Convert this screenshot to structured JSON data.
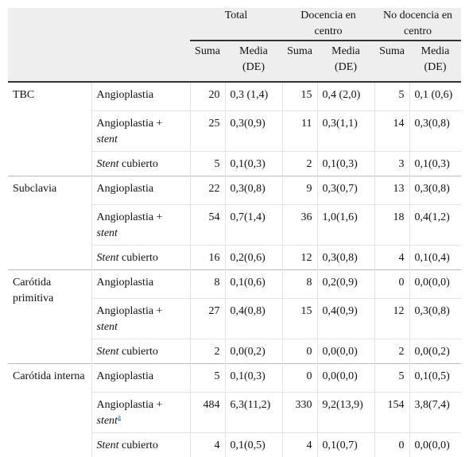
{
  "header": {
    "groups": [
      {
        "label": "Total"
      },
      {
        "label": "Docencia en centro"
      },
      {
        "label": "No docencia en centro"
      }
    ],
    "sum_label": "Suma",
    "mean_label": "Media (DE)"
  },
  "rows": [
    {
      "group": "TBC",
      "procs": [
        {
          "name": "Angioplastia",
          "stent": "",
          "t_sum": "20",
          "t_mean": "0,3 (1,4)",
          "d_sum": "15",
          "d_mean": "0,4 (2,0)",
          "n_sum": "5",
          "n_mean": "0,1 (0,6)"
        },
        {
          "name": "Angioplastia +",
          "stent": "stent",
          "t_sum": "25",
          "t_mean": "0,3(0,9)",
          "d_sum": "11",
          "d_mean": "0,3(1,1)",
          "n_sum": "14",
          "n_mean": "0,3(0,8)"
        },
        {
          "name": "cubierto",
          "stent_lead": "Stent",
          "t_sum": "5",
          "t_mean": "0,1(0,3)",
          "d_sum": "2",
          "d_mean": "0,1(0,3)",
          "n_sum": "3",
          "n_mean": "0,1(0,3)"
        }
      ]
    },
    {
      "group": "Subclavia",
      "procs": [
        {
          "name": "Angioplastia",
          "t_sum": "22",
          "t_mean": "0,3(0,8)",
          "d_sum": "9",
          "d_mean": "0,3(0,7)",
          "n_sum": "13",
          "n_mean": "0,3(0,8)"
        },
        {
          "name": "Angioplastia +",
          "stent": "stent",
          "t_sum": "54",
          "t_mean": "0,7(1,4)",
          "d_sum": "36",
          "d_mean": "1,0(1,6)",
          "n_sum": "18",
          "n_mean": "0,4(1,2)"
        },
        {
          "name": "cubierto",
          "stent_lead": "Stent",
          "t_sum": "16",
          "t_mean": "0,2(0,6)",
          "d_sum": "12",
          "d_mean": "0,3(0,8)",
          "n_sum": "4",
          "n_mean": "0,1(0,4)"
        }
      ]
    },
    {
      "group": "Carótida primitiva",
      "procs": [
        {
          "name": "Angioplastia",
          "t_sum": "8",
          "t_mean": "0,1(0,6)",
          "d_sum": "8",
          "d_mean": "0,2(0,9)",
          "n_sum": "0",
          "n_mean": "0,0(0,0)"
        },
        {
          "name": "Angioplastia +",
          "stent": "stent",
          "t_sum": "27",
          "t_mean": "0,4(0,8)",
          "d_sum": "15",
          "d_mean": "0,4(0,9)",
          "n_sum": "12",
          "n_mean": "0,3(0,8)"
        },
        {
          "name": "cubierto",
          "stent_lead": "Stent",
          "t_sum": "2",
          "t_mean": "0,0(0,2)",
          "d_sum": "0",
          "d_mean": "0,0(0,0)",
          "n_sum": "2",
          "n_mean": "0,0(0,2)"
        }
      ]
    },
    {
      "group": "Carótida interna",
      "procs": [
        {
          "name": "Angioplastia",
          "t_sum": "5",
          "t_mean": "0,1(0,3)",
          "d_sum": "0",
          "d_mean": "0,0(0,0)",
          "n_sum": "5",
          "n_mean": "0,1(0,5)"
        },
        {
          "name": "Angioplastia +",
          "stent": "stent",
          "footnote": "a",
          "t_sum": "484",
          "t_mean": "6,3(11,2)",
          "d_sum": "330",
          "d_mean": "9,2(13,9)",
          "n_sum": "154",
          "n_mean": "3,8(7,4)"
        },
        {
          "name": "cubierto",
          "stent_lead": "Stent",
          "t_sum": "4",
          "t_mean": "0,1(0,5)",
          "d_sum": "4",
          "d_mean": "0,1(0,7)",
          "n_sum": "0",
          "n_mean": "0,0(0,0)"
        }
      ]
    }
  ]
}
